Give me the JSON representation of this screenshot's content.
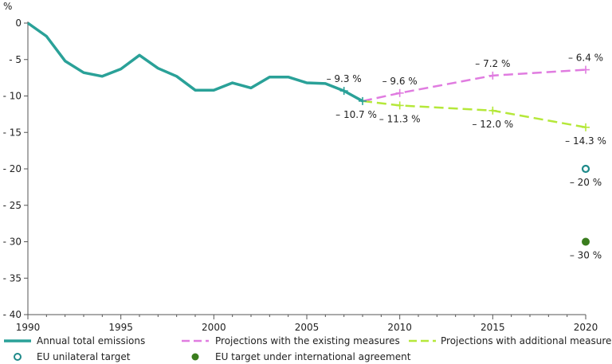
{
  "chart_data": {
    "type": "line",
    "ylabel": "%",
    "xlim": [
      1990,
      2020
    ],
    "ylim": [
      -40,
      0
    ],
    "x_ticks": [
      "1990",
      "1995",
      "2000",
      "2005",
      "2010",
      "2015",
      "2020"
    ],
    "y_ticks": [
      "0",
      "- 5",
      "- 10",
      "- 15",
      "- 20",
      "- 25",
      "- 30",
      "- 35",
      "- 40"
    ],
    "grid": false,
    "legend_position": "bottom",
    "colors": {
      "historic": "#2aa198",
      "existing": "#e07ce0",
      "additional": "#b5e83a",
      "unilateral": "#1f8a8a",
      "international": "#3a7d1e"
    },
    "series": [
      {
        "name": "Annual total emissions",
        "style": "solid",
        "x": [
          1990,
          1991,
          1992,
          1993,
          1994,
          1995,
          1996,
          1997,
          1998,
          1999,
          2000,
          2001,
          2002,
          2003,
          2004,
          2005,
          2006,
          2007,
          2008
        ],
        "y": [
          0,
          -1.8,
          -5.2,
          -6.8,
          -7.3,
          -6.3,
          -4.4,
          -6.2,
          -7.3,
          -9.2,
          -9.2,
          -8.2,
          -8.9,
          -7.4,
          -7.4,
          -8.2,
          -8.3,
          -9.3,
          -10.7
        ]
      },
      {
        "name": "Projections with the existing measures",
        "style": "dashed",
        "x": [
          2008,
          2010,
          2015,
          2020
        ],
        "y": [
          -10.7,
          -9.6,
          -7.2,
          -6.4
        ]
      },
      {
        "name": "Projections with additional measures",
        "style": "dashed",
        "x": [
          2008,
          2010,
          2015,
          2020
        ],
        "y": [
          -10.7,
          -11.3,
          -12.0,
          -14.3
        ]
      }
    ],
    "targets": [
      {
        "name": "EU unilateral target",
        "x": 2020,
        "y": -20,
        "marker": "open-circle"
      },
      {
        "name": "EU target under international agreement",
        "x": 2020,
        "y": -30,
        "marker": "filled-circle"
      }
    ],
    "annotations": [
      {
        "text": "– 9.3 %",
        "x": 2007,
        "y": -9.3,
        "anchor": "above"
      },
      {
        "text": "– 10.7 %",
        "x": 2008,
        "y": -10.7,
        "anchor": "below-left"
      },
      {
        "text": "– 9.6 %",
        "x": 2010,
        "y": -9.6,
        "anchor": "above"
      },
      {
        "text": "– 11.3 %",
        "x": 2010,
        "y": -11.3,
        "anchor": "below"
      },
      {
        "text": "– 7.2 %",
        "x": 2015,
        "y": -7.2,
        "anchor": "above"
      },
      {
        "text": "– 12.0 %",
        "x": 2015,
        "y": -12.0,
        "anchor": "below"
      },
      {
        "text": "– 6.4 %",
        "x": 2020,
        "y": -6.4,
        "anchor": "above"
      },
      {
        "text": "– 14.3 %",
        "x": 2020,
        "y": -14.3,
        "anchor": "below"
      },
      {
        "text": "– 20 %",
        "x": 2020,
        "y": -20,
        "anchor": "below"
      },
      {
        "text": "– 30 %",
        "x": 2020,
        "y": -30,
        "anchor": "below"
      }
    ]
  }
}
